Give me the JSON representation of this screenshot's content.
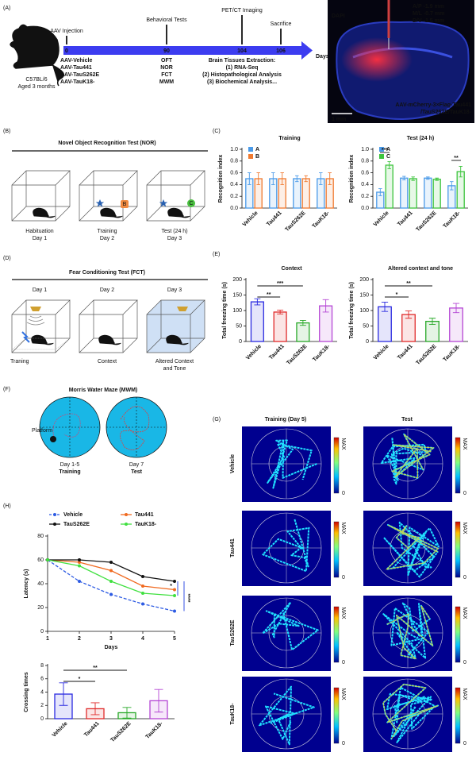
{
  "panel_labels": [
    "(A)",
    "(B)",
    "(C)",
    "(D)",
    "(E)",
    "(F)",
    "(G)",
    "(H)"
  ],
  "timeline": {
    "mouse": [
      "C57BL/6",
      "Aged 3 months"
    ],
    "unit": "Days",
    "events": [
      {
        "label": "AAV Injection",
        "day": "0",
        "details": [
          "AAV-Vehicle",
          "AAV-Tau441",
          "AAV-TauS262E",
          "AAV-TauK18-"
        ]
      },
      {
        "label": "Behavioral Tests",
        "day": "90",
        "details": [
          "OFT",
          "NOR",
          "FCT",
          "MWM"
        ]
      },
      {
        "label": "PET/CT Imaging",
        "day": "104",
        "details": [
          "Brain Tissues Extraction:",
          "(1) RNA-Seq",
          "(2)  Histopathological Analysis",
          "(3) Biochemical Analysis..."
        ]
      },
      {
        "label": "Sacrifice",
        "day": "106"
      }
    ]
  },
  "brain": {
    "coords": [
      "A/P -1.9 mm",
      "M/L -0.7 mm",
      "D/V -1.5 mm"
    ],
    "stain": "DAPI",
    "construct": [
      "AAV-mCherry-3×Flag-Tau441",
      "/TauS262E/TauK18-"
    ],
    "scale": "1 mm"
  },
  "nor": {
    "title": "Novel Object Recognition Test (NOR)",
    "objects": [
      "B",
      "C"
    ],
    "steps": [
      [
        "Habituation",
        "Day 1"
      ],
      [
        "Training",
        "Day 2"
      ],
      [
        "Test (24 h)",
        "Day 3"
      ]
    ]
  },
  "fct": {
    "title": "Fear Conditioning Test (FCT)",
    "days": [
      "Day 1",
      "Day 2",
      "Day 3"
    ],
    "captions": [
      [
        "Traning"
      ],
      [
        "Context"
      ],
      [
        "Altered Context",
        "and Tone"
      ]
    ]
  },
  "mwm": {
    "title": "Morris Water Maze (MWM)",
    "platform": "Platform",
    "phases": [
      [
        "Day 1-5",
        "Training"
      ],
      [
        "Day 7",
        "Test"
      ]
    ]
  },
  "heatmaps": {
    "columns": [
      "Training (Day 5)",
      "Test"
    ],
    "rows": [
      "Vehicle",
      "Tau441",
      "TauS262E",
      "TauK18-"
    ],
    "colorbar": [
      "MAX",
      "0"
    ]
  },
  "chart_data": [
    {
      "type": "bar",
      "title": "Training",
      "ylabel": "Recognition index",
      "categories": [
        "Vehicle",
        "Tau441",
        "TauS262E",
        "TauK18-"
      ],
      "series": [
        {
          "name": "A",
          "color": "#4a9ae8",
          "values": [
            0.5,
            0.5,
            0.5,
            0.5
          ],
          "errors": [
            0.1,
            0.1,
            0.05,
            0.1
          ]
        },
        {
          "name": "B",
          "color": "#f07a30",
          "values": [
            0.5,
            0.5,
            0.5,
            0.5
          ],
          "errors": [
            0.1,
            0.1,
            0.05,
            0.1
          ]
        }
      ],
      "ylim": [
        0,
        1
      ],
      "yticks": [
        {
          "value": 0,
          "label": "0.0"
        },
        0.2,
        0.4,
        0.6,
        0.8,
        {
          "value": 1,
          "label": "1.0"
        }
      ]
    },
    {
      "type": "bar",
      "title": "Test (24 h)",
      "ylabel": "Recognition index",
      "categories": [
        "Vehicle",
        "Tau441",
        "TauS262E",
        "TauK18-"
      ],
      "series": [
        {
          "name": "A",
          "color": "#4a9ae8",
          "values": [
            0.27,
            0.51,
            0.51,
            0.38
          ],
          "errors": [
            0.06,
            0.03,
            0.02,
            0.07
          ]
        },
        {
          "name": "C",
          "color": "#3cc43c",
          "values": [
            0.73,
            0.5,
            0.49,
            0.62
          ],
          "errors": [
            0.06,
            0.03,
            0.02,
            0.09
          ]
        }
      ],
      "ylim": [
        0,
        1
      ],
      "yticks": [
        {
          "value": 0,
          "label": "0.0"
        },
        0.2,
        0.4,
        0.6,
        0.8,
        {
          "value": 1,
          "label": "1.0"
        }
      ],
      "significance": [
        "***",
        "**"
      ]
    },
    {
      "type": "bar",
      "title": "Context",
      "ylabel": "Total freezing time (s)",
      "categories": [
        "Vehicle",
        "Tau441",
        "TauS262E",
        "TauK18-"
      ],
      "values": [
        128,
        95,
        60,
        115
      ],
      "errors": [
        10,
        6,
        8,
        20
      ],
      "colors": [
        "#2a2ae0",
        "#e02a2a",
        "#27a827",
        "#b445d4"
      ],
      "ylim": [
        0,
        200
      ],
      "yticks": [
        0,
        50,
        100,
        150,
        200
      ],
      "significance": [
        "**",
        "***"
      ]
    },
    {
      "type": "bar",
      "title": "Altered context and tone",
      "ylabel": "Total freezing time (s)",
      "categories": [
        "Vehicle",
        "Tau441",
        "TauS262E",
        "TauK18-"
      ],
      "values": [
        112,
        87,
        65,
        108
      ],
      "errors": [
        15,
        12,
        10,
        15
      ],
      "colors": [
        "#2a2ae0",
        "#e02a2a",
        "#27a827",
        "#b445d4"
      ],
      "ylim": [
        0,
        200
      ],
      "yticks": [
        0,
        50,
        100,
        150,
        200
      ],
      "significance": [
        "*",
        "**"
      ]
    },
    {
      "type": "line",
      "xlabel": "Days",
      "ylabel": "Latency (s)",
      "x": [
        1,
        2,
        3,
        4,
        5
      ],
      "xlim": [
        1,
        5
      ],
      "xticks": [
        1,
        2,
        3,
        4,
        5
      ],
      "series": [
        {
          "name": "Vehicle",
          "color": "#2d5be3",
          "dashed": true,
          "values": [
            60,
            42,
            31,
            23,
            17
          ]
        },
        {
          "name": "Tau441",
          "color": "#f06a20",
          "dashed": false,
          "values": [
            60,
            58,
            51,
            38,
            35
          ]
        },
        {
          "name": "TauS262E",
          "color": "#111111",
          "dashed": false,
          "values": [
            60,
            60,
            58,
            46,
            42
          ]
        },
        {
          "name": "TauK18-",
          "color": "#40e040",
          "dashed": false,
          "values": [
            60,
            55,
            42,
            32,
            30
          ]
        }
      ],
      "ylim": [
        0,
        80
      ],
      "yticks": [
        0,
        20,
        40,
        60,
        80
      ],
      "significance": [
        "*",
        "****"
      ]
    },
    {
      "type": "bar",
      "ylabel": "Crossing times",
      "categories": [
        "Vehicle",
        "Tau441",
        "TauS262E",
        "TauK18-"
      ],
      "values": [
        3.7,
        1.5,
        0.9,
        2.7
      ],
      "errors": [
        1.7,
        0.9,
        0.8,
        1.7
      ],
      "colors": [
        "#2a2ae0",
        "#e02a2a",
        "#27a827",
        "#b445d4"
      ],
      "ylim": [
        0,
        8
      ],
      "yticks": [
        0,
        2,
        4,
        6,
        8
      ],
      "significance": [
        "*",
        "**"
      ]
    }
  ]
}
